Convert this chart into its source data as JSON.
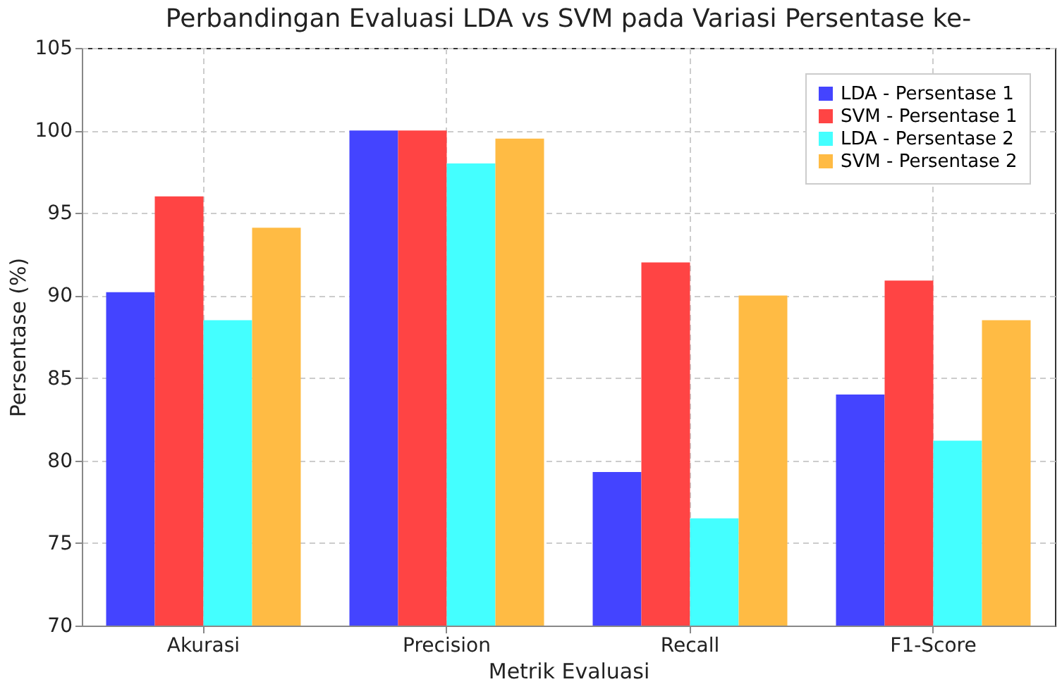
{
  "chart_data": {
    "type": "bar",
    "title": "Perbandingan Evaluasi LDA vs SVM pada Variasi Persentase ke-",
    "xlabel": "Metrik Evaluasi",
    "ylabel": "Persentase (%)",
    "categories": [
      "Akurasi",
      "Precision",
      "Recall",
      "F1-Score"
    ],
    "series": [
      {
        "name": "LDA - Persentase 1",
        "color": "#4444ff",
        "values": [
          90.2,
          100,
          79.3,
          84
        ]
      },
      {
        "name": "SVM - Persentase 1",
        "color": "#ff4444",
        "values": [
          96,
          100,
          92,
          90.9
        ]
      },
      {
        "name": "LDA - Persentase 2",
        "color": "#44ffff",
        "values": [
          88.5,
          98,
          76.5,
          81.2
        ]
      },
      {
        "name": "SVM - Persentase 2",
        "color": "#ffbb44",
        "values": [
          94.1,
          99.5,
          90,
          88.5
        ]
      }
    ],
    "ylim": [
      70,
      105
    ],
    "yticks": [
      70,
      75,
      80,
      85,
      90,
      95,
      100,
      105
    ],
    "grid": true,
    "legend": "top right"
  }
}
